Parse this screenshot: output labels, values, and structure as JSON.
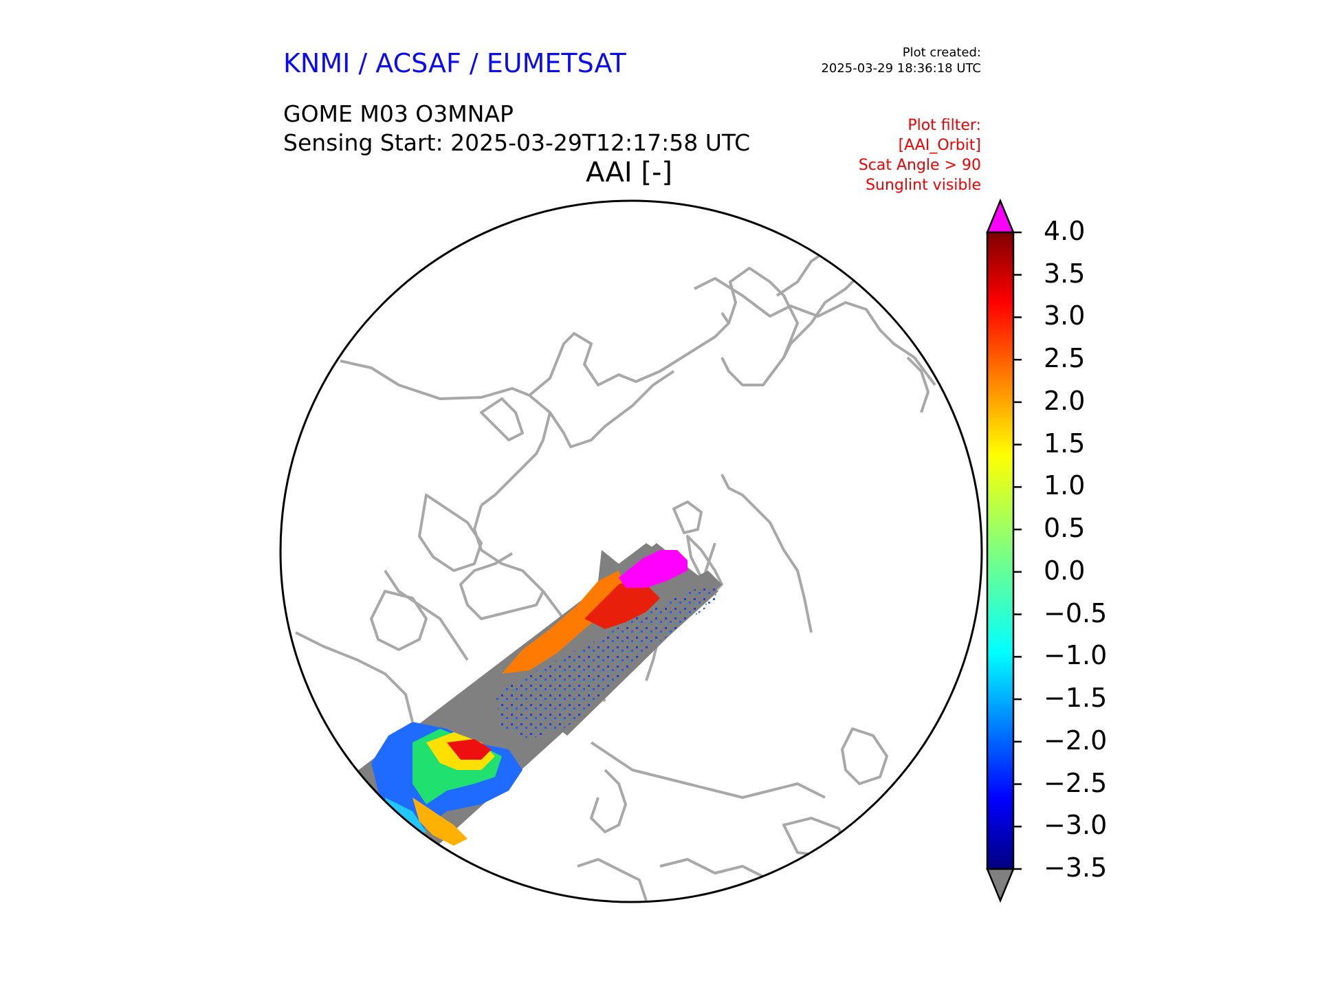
{
  "header": {
    "agency": "KNMI / ACSAF / EUMETSAT",
    "created_label": "Plot created:",
    "created_time": "2025-03-29 18:36:18 UTC",
    "product": "GOME M03 O3MNAP",
    "sensing_start": "Sensing Start: 2025-03-29T12:17:58 UTC",
    "map_title": "AAI [-]"
  },
  "plot_filter": [
    "Plot filter:",
    "[AAI_Orbit]",
    "Scat Angle > 90",
    "Sunglint visible"
  ],
  "colorbar": {
    "ticks": [
      "4.0",
      "3.5",
      "3.0",
      "2.5",
      "2.0",
      "1.5",
      "1.0",
      "0.5",
      "0.0",
      "−0.5",
      "−1.0",
      "−1.5",
      "−2.0",
      "−2.5",
      "−3.0",
      "−3.5"
    ],
    "min": -3.5,
    "max": 4.0,
    "over_color": "#ff00ff",
    "under_color": "#808080",
    "colormap": "jet"
  },
  "map": {
    "projection": "north polar stereographic",
    "coastline_color": "#a8a8a8",
    "no_data_swath_color": "#808080"
  }
}
